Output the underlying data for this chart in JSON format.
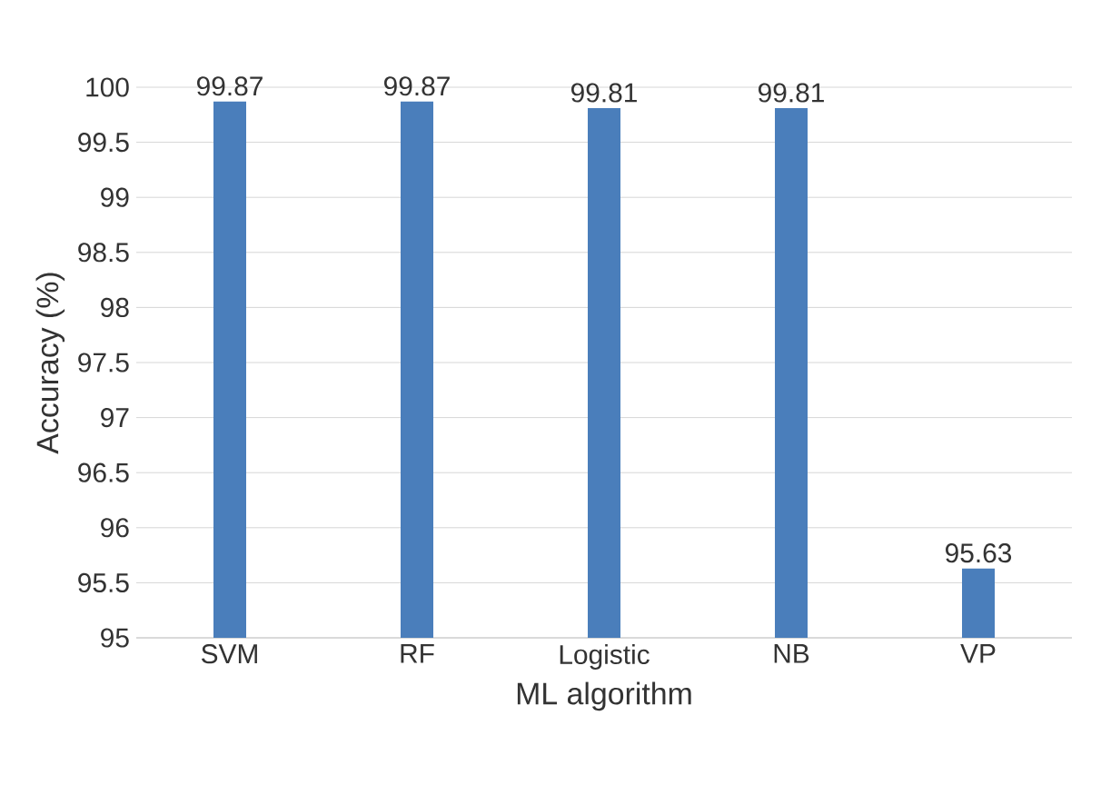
{
  "chart_data": {
    "type": "bar",
    "xlabel": "ML algorithm",
    "ylabel": "Accuracy (%)",
    "categories": [
      "SVM",
      "RF",
      "Logistic",
      "NB",
      "VP"
    ],
    "values": [
      99.87,
      99.87,
      99.81,
      99.81,
      95.63
    ],
    "color": "#4a7ebb",
    "ylim": [
      95,
      100
    ],
    "yticks": [
      95,
      95.5,
      96,
      96.5,
      97,
      97.5,
      98,
      98.5,
      99,
      99.5,
      100
    ],
    "grid": "y",
    "data_labels": true
  }
}
